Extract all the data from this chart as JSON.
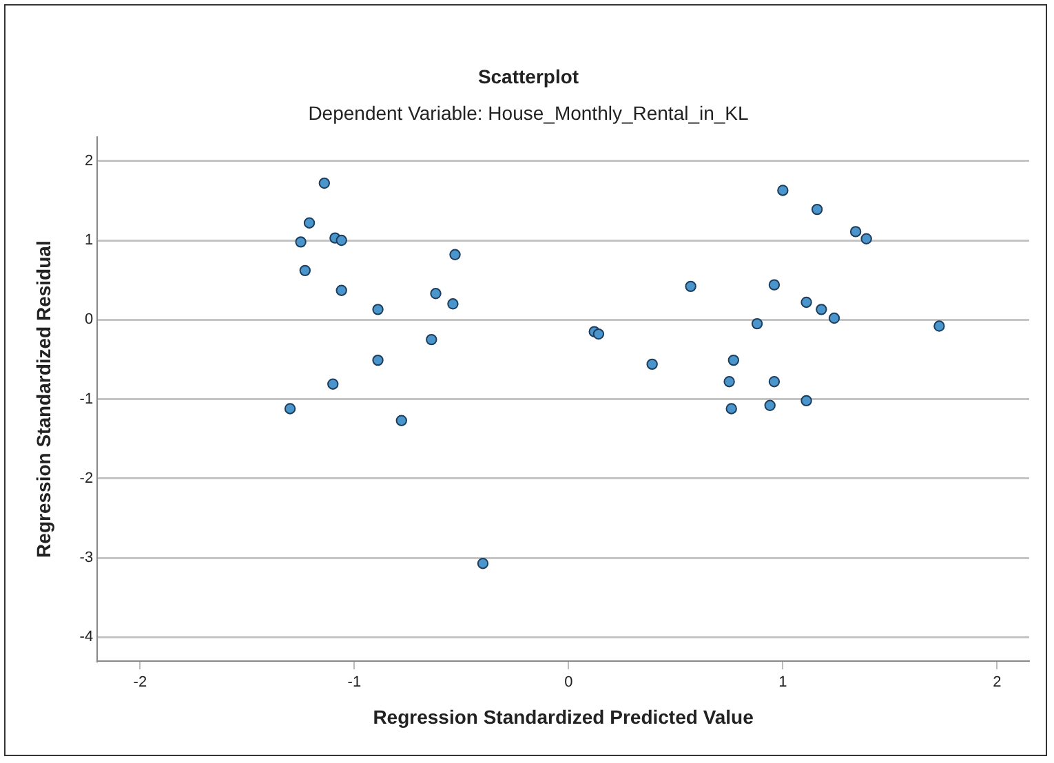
{
  "chart_data": {
    "type": "scatter",
    "title": "Scatterplot",
    "subtitle": "Dependent Variable: House_Monthly_Rental_in_KL",
    "xlabel": "Regression Standardized Predicted Value",
    "ylabel": "Regression Standardized Residual",
    "xlim": [
      -2.2,
      2.15
    ],
    "ylim": [
      -4.3,
      2.3
    ],
    "xticks": [
      -2,
      -1,
      0,
      1,
      2
    ],
    "yticks": [
      -4,
      -3,
      -2,
      -1,
      0,
      1,
      2
    ],
    "grid": "y",
    "marker": "circle",
    "legend": false,
    "series": [
      {
        "color": "#4a96cc",
        "x": [
          -1.14,
          -1.21,
          -1.25,
          -1.09,
          -1.06,
          -1.23,
          -1.06,
          -0.89,
          -0.53,
          -0.62,
          -0.54,
          -0.64,
          -0.89,
          -1.1,
          -1.3,
          -0.78,
          -0.4,
          1.0,
          1.16,
          1.34,
          1.39,
          0.57,
          0.96,
          1.11,
          1.18,
          1.24,
          0.88,
          1.73,
          0.12,
          0.14,
          0.39,
          0.77,
          0.75,
          0.96,
          0.76,
          0.94,
          1.11
        ],
        "values": [
          1.72,
          1.22,
          0.98,
          1.03,
          1.0,
          0.62,
          0.37,
          0.13,
          0.82,
          0.33,
          0.2,
          -0.25,
          -0.51,
          -0.81,
          -1.12,
          -1.27,
          -3.07,
          1.63,
          1.39,
          1.11,
          1.02,
          0.42,
          0.44,
          0.22,
          0.13,
          0.02,
          -0.05,
          -0.08,
          -0.15,
          -0.18,
          -0.56,
          -0.51,
          -0.78,
          -0.78,
          -1.12,
          -1.08,
          -1.02
        ]
      }
    ]
  }
}
